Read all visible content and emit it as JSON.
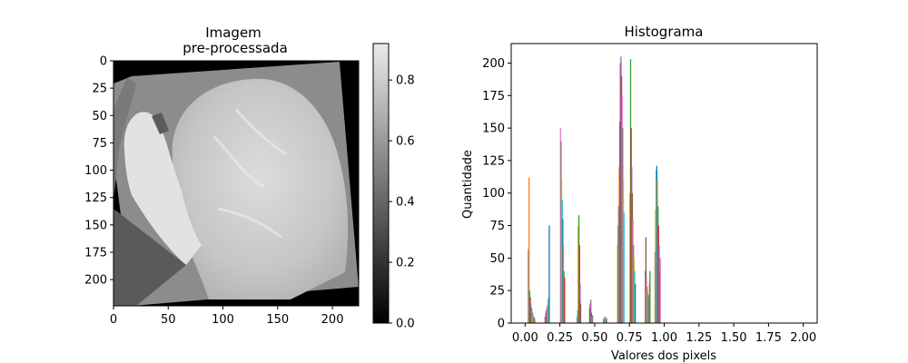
{
  "chart_data": [
    {
      "type": "image",
      "title_lines": [
        "Imagem",
        "pre-processada"
      ],
      "xlim": [
        0,
        224
      ],
      "ylim": [
        224,
        0
      ],
      "x_ticks": [
        0,
        50,
        100,
        150,
        200
      ],
      "y_ticks": [
        0,
        25,
        50,
        75,
        100,
        125,
        150,
        175,
        200
      ],
      "colorbar": {
        "range": [
          0.0,
          0.92
        ],
        "ticks": [
          "0.0",
          "0.2",
          "0.4",
          "0.6",
          "0.8"
        ],
        "tick_values": [
          0.0,
          0.2,
          0.4,
          0.6,
          0.8
        ],
        "colormap": "gray"
      }
    },
    {
      "type": "histogram",
      "title": "Histograma",
      "xlabel": "Valores dos pixels",
      "ylabel": "Quantidade",
      "xlim": [
        -0.1,
        2.1
      ],
      "ylim": [
        0,
        215
      ],
      "x_ticks": [
        "0.00",
        "0.25",
        "0.50",
        "0.75",
        "1.00",
        "1.25",
        "1.50",
        "1.75",
        "2.00"
      ],
      "x_tick_values": [
        0,
        0.25,
        0.5,
        0.75,
        1.0,
        1.25,
        1.5,
        1.75,
        2.0
      ],
      "y_ticks": [
        "0",
        "25",
        "50",
        "75",
        "100",
        "125",
        "150",
        "175",
        "200"
      ],
      "y_tick_values": [
        0,
        25,
        50,
        75,
        100,
        125,
        150,
        175,
        200
      ],
      "palette": [
        "#1f77b4",
        "#ff7f0e",
        "#2ca02c",
        "#d62728",
        "#9467bd",
        "#8c564b",
        "#e377c2",
        "#7f7f7f",
        "#bcbd22",
        "#17becf"
      ],
      "clusters": [
        {
          "x": 0.02,
          "values": [
            57,
            112,
            25,
            20,
            15,
            12,
            10,
            8,
            6,
            5,
            4,
            3
          ]
        },
        {
          "x": 0.14,
          "values": [
            5,
            8,
            10,
            12,
            14,
            18,
            20,
            75
          ]
        },
        {
          "x": 0.25,
          "values": [
            150,
            140,
            110,
            95,
            80,
            60,
            40,
            35
          ]
        },
        {
          "x": 0.37,
          "values": [
            5,
            10,
            75,
            83,
            60,
            30,
            15
          ]
        },
        {
          "x": 0.46,
          "values": [
            12,
            15,
            18,
            8,
            5,
            6
          ]
        },
        {
          "x": 0.56,
          "values": [
            3,
            4,
            5,
            3,
            2,
            4
          ]
        },
        {
          "x": 0.66,
          "values": [
            60,
            75,
            90,
            120,
            155,
            200,
            205,
            190,
            175,
            150,
            110,
            85
          ]
        },
        {
          "x": 0.75,
          "values": [
            100,
            203,
            150,
            120,
            100,
            80,
            60,
            50,
            40,
            30
          ]
        },
        {
          "x": 0.86,
          "values": [
            40,
            66,
            35,
            28,
            25,
            22,
            20,
            30,
            40
          ]
        },
        {
          "x": 0.93,
          "values": [
            55,
            87,
            118,
            121,
            110,
            90,
            75,
            60,
            40,
            50
          ]
        }
      ]
    }
  ]
}
